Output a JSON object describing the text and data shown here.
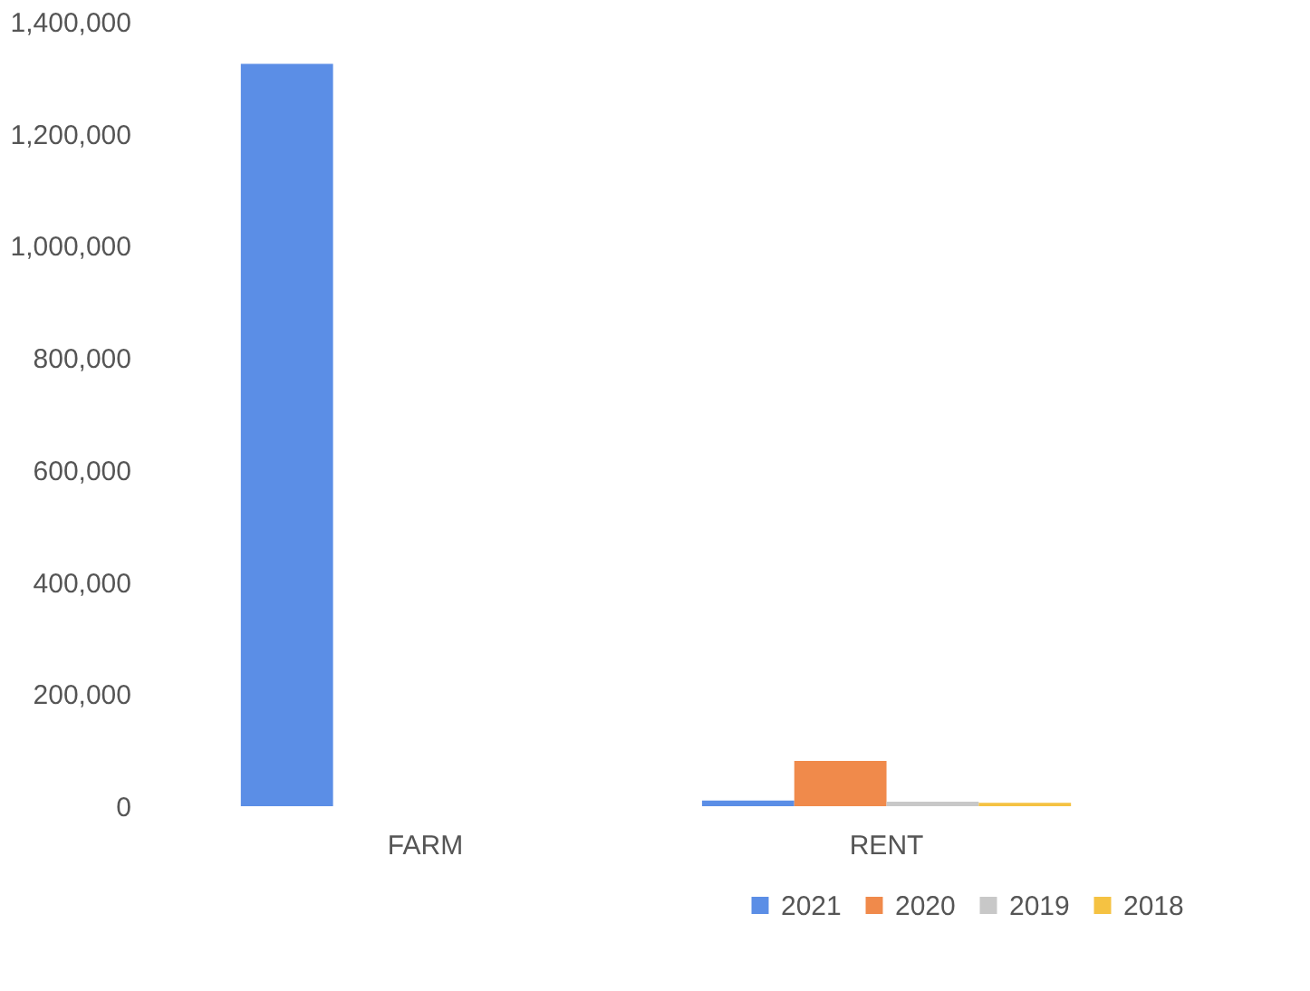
{
  "chart_data": {
    "type": "bar",
    "categories": [
      "FARM",
      "RENT"
    ],
    "series": [
      {
        "name": "2021",
        "color": "#5b8ee6",
        "values": [
          1325000,
          10000
        ]
      },
      {
        "name": "2020",
        "color": "#f08a4b",
        "values": [
          null,
          81000
        ]
      },
      {
        "name": "2019",
        "color": "#c8c8c8",
        "values": [
          null,
          8000
        ]
      },
      {
        "name": "2018",
        "color": "#f5c242",
        "values": [
          null,
          6000
        ]
      }
    ],
    "ylim": [
      0,
      1400000
    ],
    "yticks": [
      0,
      {
        "value": 200000,
        "label": "200,000"
      },
      {
        "value": 400000,
        "label": "400,000"
      },
      {
        "value": 600000,
        "label": "600,000"
      },
      {
        "value": 800000,
        "label": "800,000"
      },
      {
        "value": 1000000,
        "label": "1,000,000"
      },
      {
        "value": 1200000,
        "label": "1,200,000"
      },
      {
        "value": 1400000,
        "label": "1,400,000"
      }
    ],
    "grid": false,
    "legend": "bottom right"
  }
}
